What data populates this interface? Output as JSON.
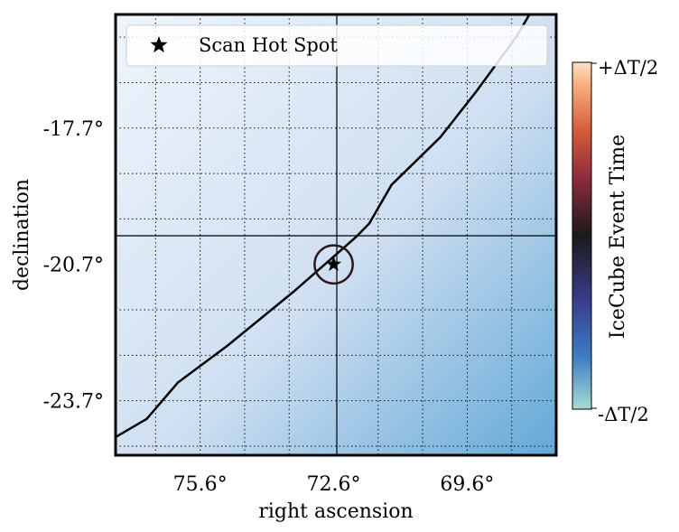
{
  "chart_data": {
    "type": "scatter",
    "xlabel": "right ascension",
    "ylabel": "declination",
    "x_ticks": [
      {
        "value": 75.6,
        "label": "75.6°"
      },
      {
        "value": 72.6,
        "label": "72.6°"
      },
      {
        "value": 69.6,
        "label": "69.6°"
      }
    ],
    "y_ticks": [
      {
        "value": -17.7,
        "label": "-17.7°"
      },
      {
        "value": -20.7,
        "label": "-20.7°"
      },
      {
        "value": -23.7,
        "label": "-23.7°"
      }
    ],
    "xlim": [
      77.5,
      67.6
    ],
    "ylim": [
      -24.9,
      -15.2
    ],
    "x_inverted": true,
    "grid": true,
    "minor_grid": "dotted",
    "legend": {
      "position": "top",
      "entries": [
        {
          "marker": "star",
          "label": "Scan Hot Spot"
        }
      ]
    },
    "hot_spot": {
      "ra": 72.6,
      "dec": -20.7
    },
    "error_circle": {
      "ra": 72.6,
      "dec": -20.7,
      "radius_deg": 0.42
    },
    "galactic_plane": [
      [
        77.5,
        -24.5
      ],
      [
        76.8,
        -24.1
      ],
      [
        76.1,
        -23.3
      ],
      [
        75.0,
        -22.5
      ],
      [
        73.5,
        -21.3
      ],
      [
        72.1,
        -20.1
      ],
      [
        71.8,
        -19.8
      ],
      [
        71.3,
        -18.95
      ],
      [
        70.2,
        -17.9
      ],
      [
        69.4,
        -16.9
      ],
      [
        68.5,
        -15.7
      ],
      [
        68.2,
        -15.2
      ]
    ],
    "colorbar": {
      "label": "IceCube Event Time",
      "top_label": "+ΔT/2",
      "bottom_label": "-ΔT/2",
      "colors": [
        "#a8dcd2",
        "#3d7dc4",
        "#3a3a8a",
        "#1a1a1a",
        "#8a2a3e",
        "#d45a3a",
        "#f7ac78",
        "#fde0c8"
      ]
    },
    "background_gradient": [
      "#eef5fc",
      "#cfdff1",
      "#62a8d6"
    ]
  }
}
